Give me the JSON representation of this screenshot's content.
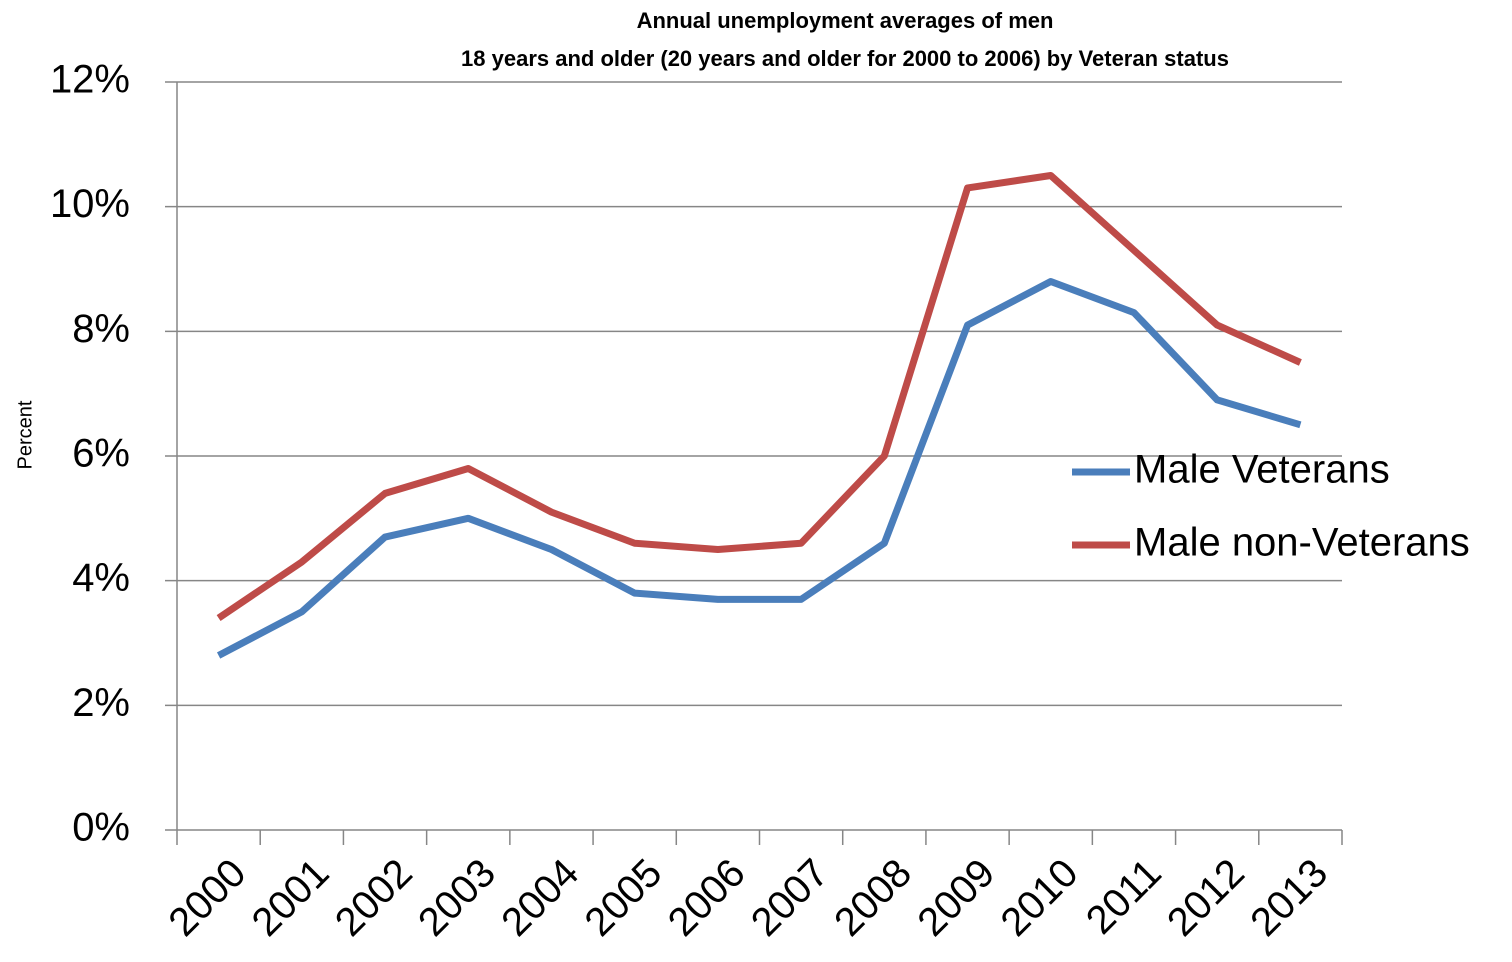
{
  "chart_data": {
    "type": "line",
    "title": [
      "Annual unemployment averages of men",
      "18 years and older (20 years and older for 2000 to 2006) by Veteran status"
    ],
    "y_label": "Percent",
    "categories": [
      "2000",
      "2001",
      "2002",
      "2003",
      "2004",
      "2005",
      "2006",
      "2007",
      "2008",
      "2009",
      "2010",
      "2011",
      "2012",
      "2013"
    ],
    "series": [
      {
        "name": "Male Veterans",
        "color": "#4a7ebb",
        "values": [
          2.8,
          3.5,
          4.7,
          5.0,
          4.5,
          3.8,
          3.7,
          3.7,
          4.6,
          8.1,
          8.8,
          8.3,
          6.9,
          6.5
        ]
      },
      {
        "name": "Male non-Veterans",
        "color": "#be4b48",
        "values": [
          3.4,
          4.3,
          5.4,
          5.8,
          5.1,
          4.6,
          4.5,
          4.6,
          6.0,
          10.3,
          10.5,
          9.3,
          8.1,
          7.5
        ]
      }
    ],
    "ylim": [
      0,
      12
    ],
    "yticks": [
      {
        "value": 0,
        "label": "0%"
      },
      {
        "value": 2,
        "label": "2%"
      },
      {
        "value": 4,
        "label": "4%"
      },
      {
        "value": 6,
        "label": "6%"
      },
      {
        "value": 8,
        "label": "8%"
      },
      {
        "value": 10,
        "label": "10%"
      },
      {
        "value": 12,
        "label": "12%"
      }
    ],
    "grid": true,
    "legend": "right"
  }
}
